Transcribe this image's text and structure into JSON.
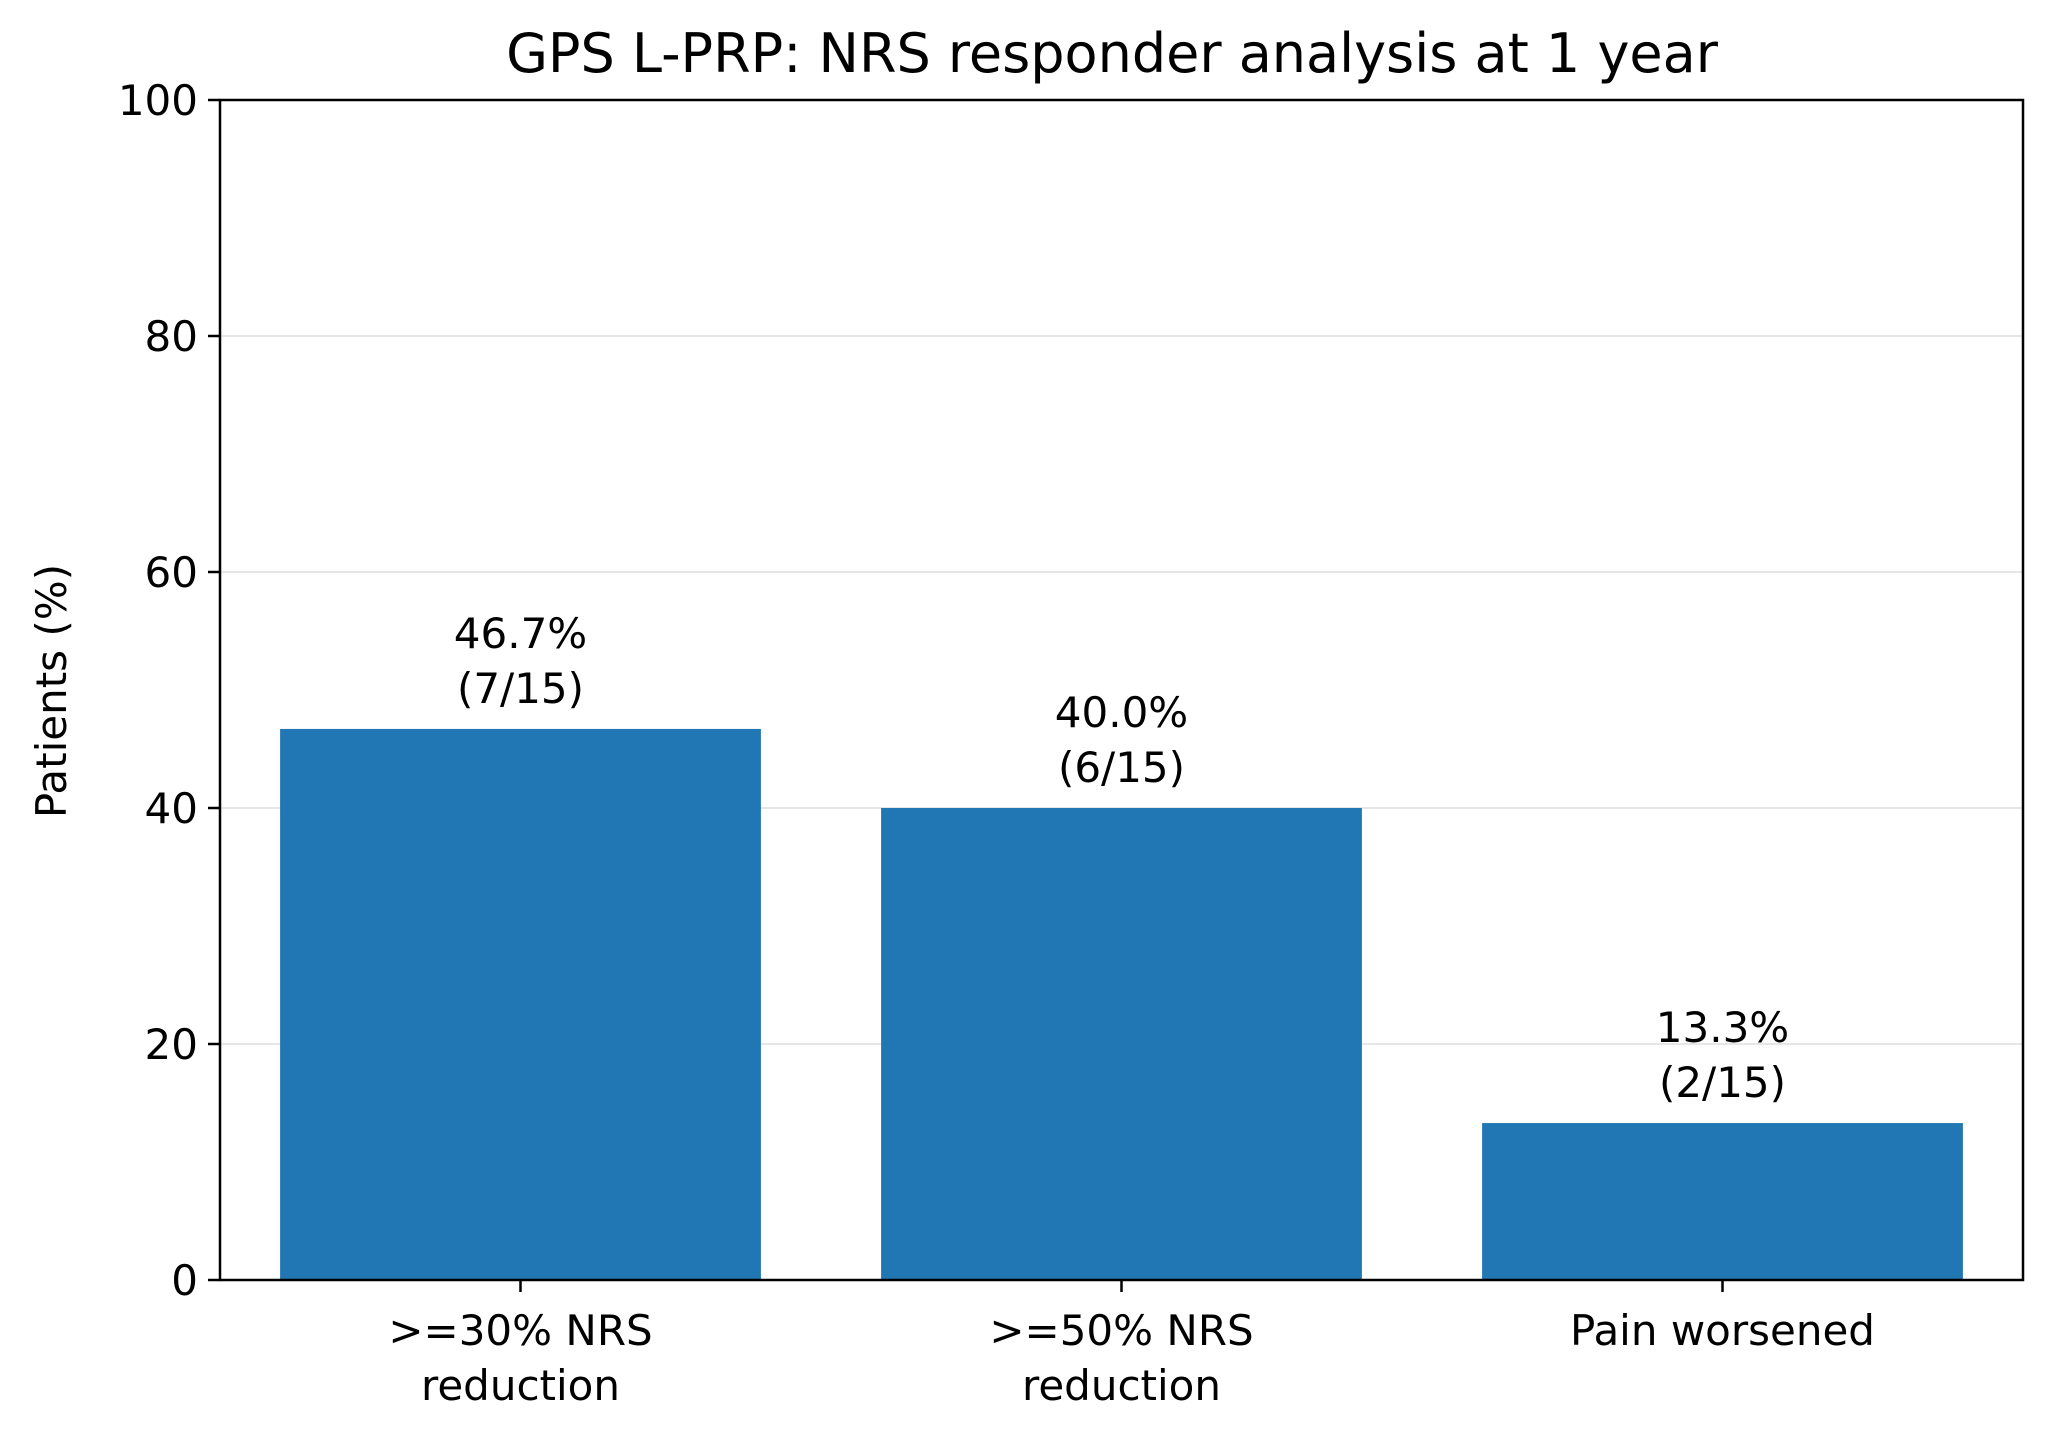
{
  "chart_data": {
    "type": "bar",
    "title": "GPS L-PRP: NRS responder analysis at 1 year",
    "xlabel": "",
    "ylabel": "Patients (%)",
    "ylim": [
      0,
      100
    ],
    "yticks": [
      0,
      20,
      40,
      60,
      80,
      100
    ],
    "ytick_labels": [
      "0",
      "20",
      "40",
      "60",
      "80",
      "100"
    ],
    "grid": "y-major",
    "categories": [
      [
        ">=30% NRS",
        "reduction"
      ],
      [
        ">=50% NRS",
        "reduction"
      ],
      [
        "Pain worsened"
      ]
    ],
    "values": [
      46.7,
      40.0,
      13.3
    ],
    "bar_labels": [
      [
        "46.7%",
        "(7/15)"
      ],
      [
        "40.0%",
        "(6/15)"
      ],
      [
        "13.3%",
        "(2/15)"
      ]
    ],
    "colors": {
      "bar": "#2077b4",
      "grid": "#e6e6e6",
      "axis": "#000000"
    }
  }
}
